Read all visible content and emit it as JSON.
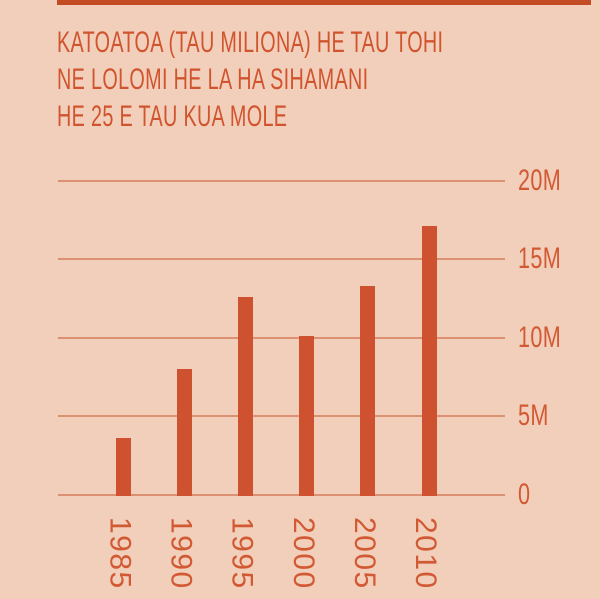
{
  "title": {
    "line1": "KATOATOA (TAU MILIONA) HE TAU TOHI",
    "line2": "NE LOLOMI HE LA HA SIHAMANI",
    "line3": "HE 25 E TAU KUA MOLE"
  },
  "colors": {
    "background": "#f2cfba",
    "bar": "#ce5130",
    "gridline": "#dc9173",
    "title_text": "#d0542e",
    "axis_text": "#d15933",
    "accent_bar": "#c44c25"
  },
  "chart_data": {
    "type": "bar",
    "title": "KATOATOA (TAU MILIONA) HE TAU TOHI NE LOLOMI HE LA HA SIHAMANI HE 25 E TAU KUA MOLE",
    "categories": [
      "1985",
      "1990",
      "1995",
      "2000",
      "2005",
      "2010"
    ],
    "values": [
      3.6,
      8.0,
      12.6,
      10.1,
      13.3,
      17.1
    ],
    "xlabel": "",
    "ylabel": "",
    "ylim": [
      0,
      20
    ],
    "yticks": [
      {
        "label": "20M",
        "value": 20
      },
      {
        "label": "15M",
        "value": 15
      },
      {
        "label": "10M",
        "value": 10
      },
      {
        "label": "5M",
        "value": 5
      },
      {
        "label": "0",
        "value": 0
      }
    ],
    "grid": true,
    "legend": false,
    "x_label_rotation": 90,
    "units": "millions"
  }
}
